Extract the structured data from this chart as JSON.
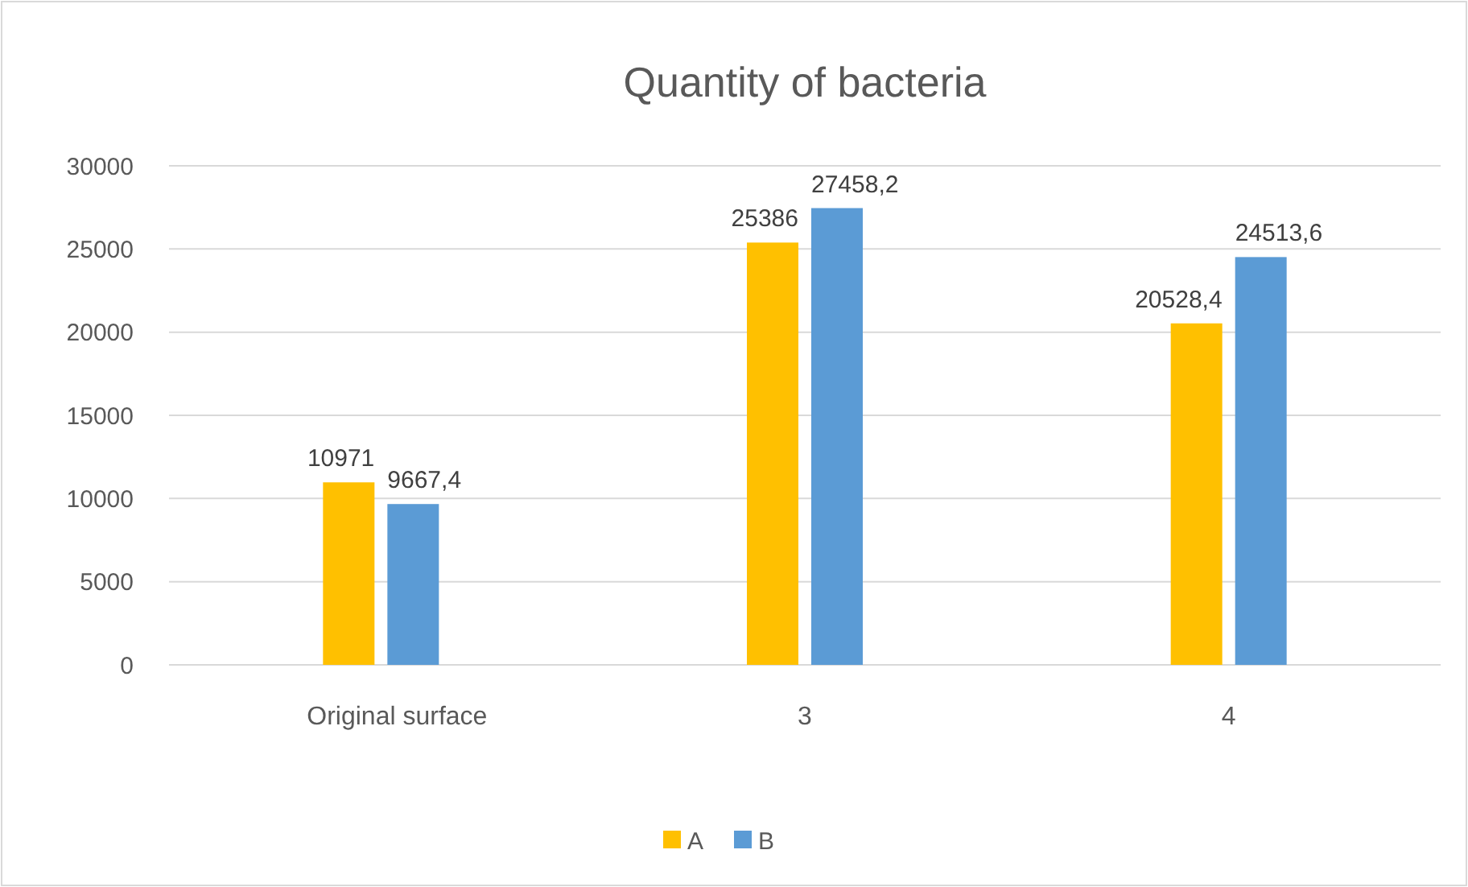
{
  "chart_data": {
    "type": "bar",
    "title": "Quantity of bacteria",
    "categories": [
      "Original surface",
      "3",
      "4"
    ],
    "series": [
      {
        "name": "A",
        "color": "#ffc000",
        "values": [
          10971,
          25386,
          20528.4
        ],
        "value_labels": [
          "10971",
          "25386",
          "20528,4"
        ]
      },
      {
        "name": "B",
        "color": "#5b9bd5",
        "values": [
          9667.4,
          27458.2,
          24513.6
        ],
        "value_labels": [
          "9667,4",
          "27458,2",
          "24513,6"
        ]
      }
    ],
    "ylim": [
      0,
      30000
    ],
    "yticks": [
      0,
      5000,
      10000,
      15000,
      20000,
      25000,
      30000
    ],
    "grid": "y",
    "legend": "bottom"
  }
}
